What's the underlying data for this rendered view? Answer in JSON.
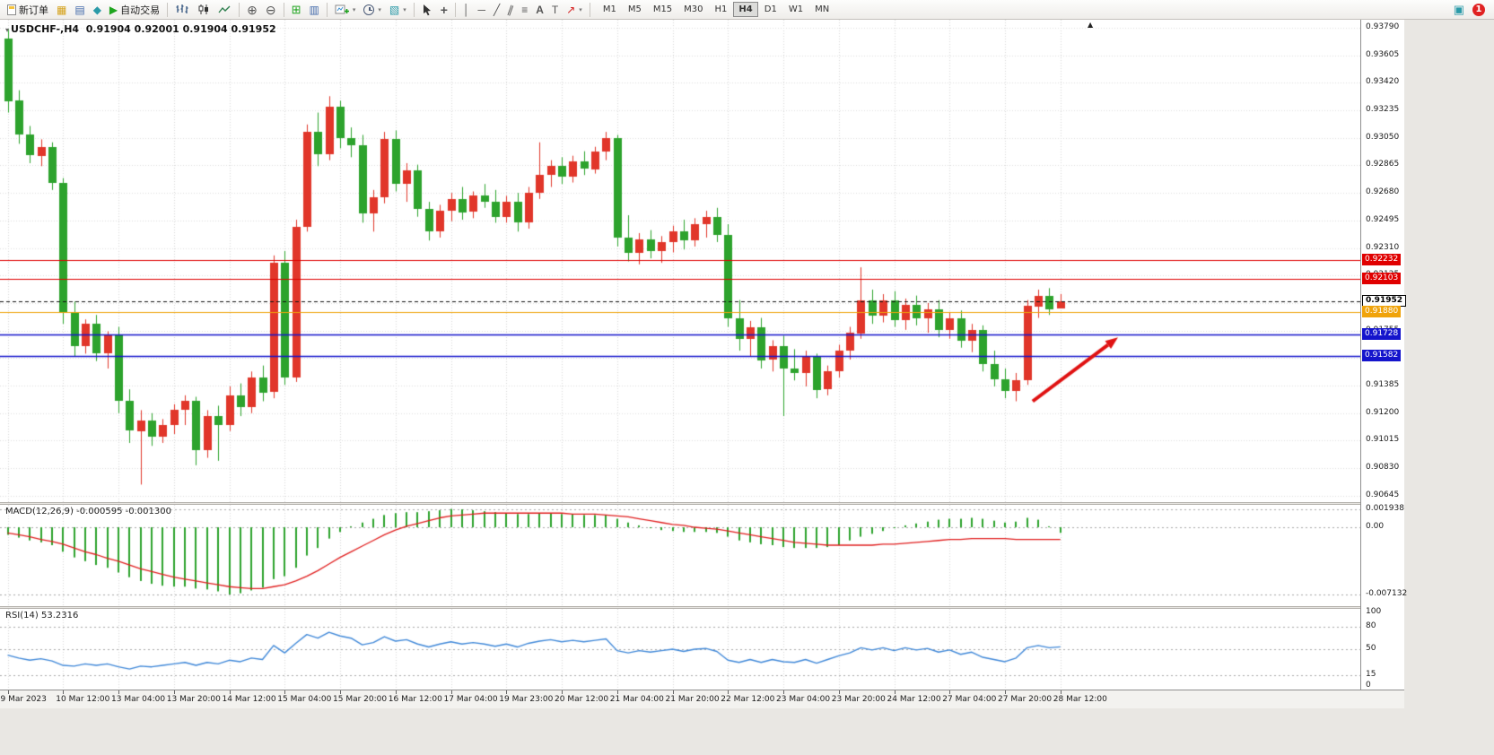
{
  "toolbar": {
    "new_order_label": "新订单",
    "autotrade_label": "自动交易",
    "timeframes": [
      "M1",
      "M5",
      "M15",
      "M30",
      "H1",
      "H4",
      "D1",
      "W1",
      "MN"
    ],
    "active_timeframe": "H4",
    "notification_count": "1",
    "icons": {
      "market_watch": "▦",
      "data_window": "▤",
      "navigator": "◆",
      "autotrade_play": "▶",
      "zoom_in": "⊕",
      "zoom_out": "⊖",
      "tile_windows": "⊞",
      "arrange_windows": "▥",
      "template": "▧",
      "crosshair": "+",
      "vertical_line": "│",
      "horizontal_line": "─",
      "trendline": "╱",
      "channel": "∥",
      "fibonacci": "≡",
      "text": "A",
      "label": "T",
      "arrows": "↗",
      "caret": "▾",
      "messages": "▣",
      "chart_shift": "▲"
    }
  },
  "chart": {
    "symbol_marker": "▾",
    "title_symbol": "USDCHF-,H4",
    "ohlc": "0.91904 0.92001 0.91904 0.91952"
  },
  "indicators": {
    "macd": {
      "label": "MACD(12,26,9)",
      "values": "-0.000595 -0.001300"
    },
    "rsi": {
      "label": "RSI(14)",
      "value": "53.2316"
    }
  },
  "chart_data": [
    {
      "type": "candlestick",
      "title": "USDCHF-,H4",
      "symbol": "USDCHF-",
      "timeframe": "H4",
      "up_color": "#e1362a",
      "down_color": "#2da32d",
      "price_range": {
        "max": 0.93844,
        "min": 0.90602
      },
      "price_ticks": [
        "0.93790",
        "0.93605",
        "0.93420",
        "0.93235",
        "0.93050",
        "0.92865",
        "0.92680",
        "0.92495",
        "0.92310",
        "0.92125",
        "0.91940",
        "0.91755",
        "0.91570",
        "0.91385",
        "0.91200",
        "0.91015",
        "0.90830",
        "0.90645"
      ],
      "x_labels": [
        "9 Mar 2023",
        "10 Mar 12:00",
        "13 Mar 04:00",
        "13 Mar 20:00",
        "14 Mar 12:00",
        "15 Mar 04:00",
        "15 Mar 20:00",
        "16 Mar 12:00",
        "17 Mar 04:00",
        "19 Mar 23:00",
        "20 Mar 12:00",
        "21 Mar 04:00",
        "21 Mar 20:00",
        "22 Mar 12:00",
        "23 Mar 04:00",
        "23 Mar 20:00",
        "24 Mar 12:00",
        "27 Mar 04:00",
        "27 Mar 20:00",
        "28 Mar 12:00"
      ],
      "candles_per_label": 5,
      "lines": [
        {
          "price": 0.92232,
          "label": "0.92232",
          "color": "#e00000",
          "style": "solid",
          "current": false
        },
        {
          "price": 0.92103,
          "label": "0.92103",
          "color": "#e00000",
          "style": "solid",
          "current": false
        },
        {
          "price": 0.91952,
          "label": "0.91952",
          "color": "#000000",
          "style": "dash",
          "current": true
        },
        {
          "price": 0.9188,
          "label": "0.91880",
          "color": "#f0a30a",
          "style": "solid",
          "current": false
        },
        {
          "price": 0.91728,
          "label": "0.91728",
          "color": "#1414cc",
          "style": "solid",
          "current": false
        },
        {
          "price": 0.91582,
          "label": "0.91582",
          "color": "#1414cc",
          "style": "solid",
          "current": false
        }
      ],
      "arrow": {
        "bar1": 92.5,
        "p1": 0.9128,
        "bar2": 100.2,
        "p2": 0.9171,
        "color": "#e01212"
      },
      "candles": [
        [
          0.9372,
          0.9378,
          0.9322,
          0.933
        ],
        [
          0.933,
          0.9337,
          0.9301,
          0.9307
        ],
        [
          0.9307,
          0.9313,
          0.9288,
          0.9293
        ],
        [
          0.9293,
          0.9304,
          0.9286,
          0.9299
        ],
        [
          0.9299,
          0.9302,
          0.927,
          0.9275
        ],
        [
          0.9275,
          0.9278,
          0.918,
          0.9188
        ],
        [
          0.9188,
          0.9195,
          0.9158,
          0.9165
        ],
        [
          0.9165,
          0.9183,
          0.916,
          0.918
        ],
        [
          0.918,
          0.9186,
          0.9155,
          0.916
        ],
        [
          0.916,
          0.9175,
          0.915,
          0.9172
        ],
        [
          0.9172,
          0.9178,
          0.912,
          0.9128
        ],
        [
          0.9128,
          0.9136,
          0.91,
          0.9108
        ],
        [
          0.9108,
          0.9122,
          0.9072,
          0.9115
        ],
        [
          0.9115,
          0.912,
          0.9098,
          0.9104
        ],
        [
          0.9104,
          0.9116,
          0.91,
          0.9112
        ],
        [
          0.9112,
          0.9126,
          0.9106,
          0.9122
        ],
        [
          0.9122,
          0.9132,
          0.9112,
          0.9128
        ],
        [
          0.9128,
          0.9131,
          0.9085,
          0.9095
        ],
        [
          0.9095,
          0.9122,
          0.909,
          0.9118
        ],
        [
          0.9118,
          0.9125,
          0.9088,
          0.9112
        ],
        [
          0.9112,
          0.9138,
          0.9108,
          0.9132
        ],
        [
          0.9132,
          0.914,
          0.9118,
          0.9124
        ],
        [
          0.9124,
          0.9148,
          0.912,
          0.9144
        ],
        [
          0.9144,
          0.9152,
          0.9128,
          0.9134
        ],
        [
          0.9134,
          0.9226,
          0.913,
          0.9221
        ],
        [
          0.9221,
          0.9229,
          0.9139,
          0.9144
        ],
        [
          0.9144,
          0.925,
          0.9141,
          0.9245
        ],
        [
          0.9245,
          0.9314,
          0.9242,
          0.9309
        ],
        [
          0.9309,
          0.9322,
          0.9286,
          0.9294
        ],
        [
          0.9294,
          0.9333,
          0.929,
          0.9326
        ],
        [
          0.9326,
          0.933,
          0.9298,
          0.9305
        ],
        [
          0.9305,
          0.9312,
          0.9292,
          0.93
        ],
        [
          0.93,
          0.9307,
          0.9248,
          0.9254
        ],
        [
          0.9254,
          0.927,
          0.9242,
          0.9265
        ],
        [
          0.9265,
          0.9309,
          0.9261,
          0.9304
        ],
        [
          0.9304,
          0.931,
          0.9269,
          0.9274
        ],
        [
          0.9274,
          0.9288,
          0.9262,
          0.9283
        ],
        [
          0.9283,
          0.9287,
          0.9252,
          0.9257
        ],
        [
          0.9257,
          0.9262,
          0.9236,
          0.9242
        ],
        [
          0.9242,
          0.926,
          0.9238,
          0.9256
        ],
        [
          0.9256,
          0.9268,
          0.9249,
          0.9264
        ],
        [
          0.9264,
          0.9272,
          0.925,
          0.9255
        ],
        [
          0.9255,
          0.9269,
          0.9251,
          0.9266
        ],
        [
          0.9266,
          0.9274,
          0.9258,
          0.9262
        ],
        [
          0.9262,
          0.927,
          0.9248,
          0.9252
        ],
        [
          0.9252,
          0.9266,
          0.9248,
          0.9262
        ],
        [
          0.9262,
          0.9268,
          0.9242,
          0.9248
        ],
        [
          0.9248,
          0.9272,
          0.9244,
          0.9268
        ],
        [
          0.9268,
          0.9302,
          0.9264,
          0.928
        ],
        [
          0.928,
          0.929,
          0.9272,
          0.9286
        ],
        [
          0.9286,
          0.9292,
          0.9274,
          0.9279
        ],
        [
          0.9279,
          0.9293,
          0.9275,
          0.9289
        ],
        [
          0.9289,
          0.9296,
          0.928,
          0.9284
        ],
        [
          0.9284,
          0.9299,
          0.9281,
          0.9296
        ],
        [
          0.9296,
          0.9309,
          0.929,
          0.9305
        ],
        [
          0.9305,
          0.9307,
          0.9232,
          0.9238
        ],
        [
          0.9238,
          0.9253,
          0.9222,
          0.9228
        ],
        [
          0.9228,
          0.9241,
          0.922,
          0.9237
        ],
        [
          0.9237,
          0.9243,
          0.9224,
          0.9229
        ],
        [
          0.9229,
          0.9239,
          0.9221,
          0.9235
        ],
        [
          0.9235,
          0.9246,
          0.9228,
          0.9242
        ],
        [
          0.9242,
          0.925,
          0.923,
          0.9236
        ],
        [
          0.9236,
          0.9251,
          0.9232,
          0.9247
        ],
        [
          0.9247,
          0.9256,
          0.9238,
          0.9252
        ],
        [
          0.9252,
          0.9258,
          0.9235,
          0.924
        ],
        [
          0.924,
          0.9247,
          0.9178,
          0.9184
        ],
        [
          0.9184,
          0.9196,
          0.9162,
          0.917
        ],
        [
          0.917,
          0.9182,
          0.9158,
          0.9178
        ],
        [
          0.9178,
          0.9184,
          0.915,
          0.9156
        ],
        [
          0.9156,
          0.9169,
          0.9148,
          0.9165
        ],
        [
          0.9165,
          0.9172,
          0.9118,
          0.915
        ],
        [
          0.915,
          0.9163,
          0.9142,
          0.9147
        ],
        [
          0.9147,
          0.9162,
          0.9138,
          0.9158
        ],
        [
          0.9158,
          0.916,
          0.913,
          0.9136
        ],
        [
          0.9136,
          0.9152,
          0.9132,
          0.9148
        ],
        [
          0.9148,
          0.9166,
          0.9144,
          0.9162
        ],
        [
          0.9162,
          0.9178,
          0.9156,
          0.9174
        ],
        [
          0.9174,
          0.9218,
          0.917,
          0.9196
        ],
        [
          0.9196,
          0.9203,
          0.918,
          0.9186
        ],
        [
          0.9186,
          0.92,
          0.9181,
          0.9196
        ],
        [
          0.9196,
          0.9202,
          0.9178,
          0.9183
        ],
        [
          0.9183,
          0.9197,
          0.9176,
          0.9193
        ],
        [
          0.9193,
          0.9199,
          0.9179,
          0.9184
        ],
        [
          0.9184,
          0.9194,
          0.9174,
          0.919
        ],
        [
          0.919,
          0.9196,
          0.9171,
          0.9176
        ],
        [
          0.9176,
          0.9188,
          0.917,
          0.9184
        ],
        [
          0.9184,
          0.9189,
          0.9164,
          0.9169
        ],
        [
          0.9169,
          0.918,
          0.9161,
          0.9176
        ],
        [
          0.9176,
          0.9179,
          0.9148,
          0.9153
        ],
        [
          0.9153,
          0.9162,
          0.9138,
          0.9143
        ],
        [
          0.9143,
          0.915,
          0.913,
          0.9135
        ],
        [
          0.9135,
          0.9147,
          0.9128,
          0.9142
        ],
        [
          0.9142,
          0.9196,
          0.9139,
          0.9192
        ],
        [
          0.9192,
          0.9203,
          0.9184,
          0.9199
        ],
        [
          0.9199,
          0.9204,
          0.9186,
          0.919
        ],
        [
          0.91904,
          0.92001,
          0.91904,
          0.91952
        ]
      ]
    },
    {
      "type": "bar",
      "title": "MACD(12,26,9)",
      "current_values": "-0.000595 -0.001300",
      "histogram_color": "#2da32d",
      "signal_color": "#e11f1f",
      "range": {
        "max": 0.00238,
        "min": -0.00837
      },
      "scale": [
        {
          "value": 0.001938,
          "label": "0.001938"
        },
        {
          "value": 0,
          "label": "0.00"
        },
        {
          "value": -0.007132,
          "label": "-0.007132"
        }
      ],
      "level_lines": [
        0.001938,
        0,
        -0.007132
      ],
      "histogram": [
        -0.0008,
        -0.0011,
        -0.0014,
        -0.0016,
        -0.0019,
        -0.0026,
        -0.0032,
        -0.0036,
        -0.004,
        -0.0043,
        -0.0048,
        -0.0053,
        -0.0057,
        -0.006,
        -0.0062,
        -0.0063,
        -0.0063,
        -0.0065,
        -0.0066,
        -0.0068,
        -0.00713,
        -0.007,
        -0.0067,
        -0.0064,
        -0.0055,
        -0.0052,
        -0.0043,
        -0.003,
        -0.0022,
        -0.0012,
        -0.0005,
        0.0001,
        0.0005,
        0.0009,
        0.0013,
        0.0015,
        0.0016,
        0.0016,
        0.0017,
        0.0018,
        0.00194,
        0.0019,
        0.0018,
        0.0017,
        0.0016,
        0.0015,
        0.0014,
        0.0014,
        0.0015,
        0.0015,
        0.0014,
        0.0014,
        0.0013,
        0.0013,
        0.0013,
        0.0009,
        0.0005,
        0.0002,
        -0.0001,
        -0.0003,
        -0.0004,
        -0.0005,
        -0.0005,
        -0.0005,
        -0.0006,
        -0.001,
        -0.0014,
        -0.0016,
        -0.0018,
        -0.0019,
        -0.0021,
        -0.0022,
        -0.0022,
        -0.0022,
        -0.0021,
        -0.0019,
        -0.0014,
        -0.001,
        -0.0007,
        -0.0004,
        -0.0001,
        0.0002,
        0.0004,
        0.0006,
        0.0008,
        0.0009,
        0.0009,
        0.001,
        0.0009,
        0.0007,
        0.0005,
        0.0006,
        0.001,
        0.0008,
        0.0001,
        -0.000595
      ],
      "signal": [
        -0.0006,
        -0.0008,
        -0.001,
        -0.0013,
        -0.0015,
        -0.0018,
        -0.0022,
        -0.0026,
        -0.0029,
        -0.0033,
        -0.0036,
        -0.004,
        -0.0044,
        -0.0047,
        -0.005,
        -0.0053,
        -0.0055,
        -0.0057,
        -0.0059,
        -0.0061,
        -0.0063,
        -0.0064,
        -0.0065,
        -0.0065,
        -0.0063,
        -0.0061,
        -0.0057,
        -0.0052,
        -0.0046,
        -0.0039,
        -0.0032,
        -0.0026,
        -0.002,
        -0.0014,
        -0.0008,
        -0.0003,
        0.0001,
        0.0004,
        0.0007,
        0.001,
        0.0012,
        0.0013,
        0.0014,
        0.0015,
        0.0015,
        0.0015,
        0.0015,
        0.0015,
        0.0015,
        0.0015,
        0.0015,
        0.0014,
        0.0014,
        0.0014,
        0.0013,
        0.0012,
        0.0011,
        0.0009,
        0.0007,
        0.0005,
        0.0003,
        0.0002,
        0.0,
        -0.0001,
        -0.0002,
        -0.0004,
        -0.0006,
        -0.0008,
        -0.001,
        -0.0012,
        -0.0014,
        -0.0016,
        -0.0017,
        -0.0018,
        -0.0019,
        -0.0019,
        -0.0019,
        -0.0019,
        -0.0019,
        -0.0018,
        -0.0018,
        -0.0017,
        -0.0016,
        -0.0015,
        -0.0014,
        -0.0013,
        -0.0013,
        -0.0012,
        -0.0012,
        -0.0012,
        -0.0012,
        -0.0013,
        -0.0013,
        -0.0013,
        -0.0013,
        -0.0013
      ]
    },
    {
      "type": "line",
      "title": "RSI(14)",
      "current_value": 53.2316,
      "line_color": "#4189d9",
      "levels": [
        80,
        50,
        15
      ],
      "scale": [
        {
          "value": 100,
          "label": "100"
        },
        {
          "value": 80,
          "label": "80"
        },
        {
          "value": 50,
          "label": "50"
        },
        {
          "value": 15,
          "label": "15"
        },
        {
          "value": 0,
          "label": "0"
        }
      ],
      "values": [
        42,
        38,
        35,
        37,
        34,
        28,
        27,
        30,
        28,
        30,
        26,
        23,
        27,
        26,
        28,
        30,
        32,
        28,
        32,
        30,
        35,
        33,
        38,
        36,
        55,
        45,
        58,
        70,
        65,
        73,
        68,
        65,
        56,
        59,
        67,
        61,
        63,
        57,
        53,
        57,
        60,
        57,
        59,
        57,
        54,
        57,
        53,
        58,
        61,
        63,
        60,
        62,
        60,
        62,
        64,
        48,
        45,
        48,
        46,
        48,
        50,
        47,
        50,
        51,
        47,
        35,
        32,
        36,
        32,
        36,
        33,
        32,
        36,
        31,
        36,
        41,
        45,
        52,
        49,
        52,
        48,
        52,
        49,
        51,
        46,
        49,
        43,
        46,
        39,
        36,
        33,
        38,
        52,
        55,
        52,
        53.2316
      ]
    }
  ]
}
